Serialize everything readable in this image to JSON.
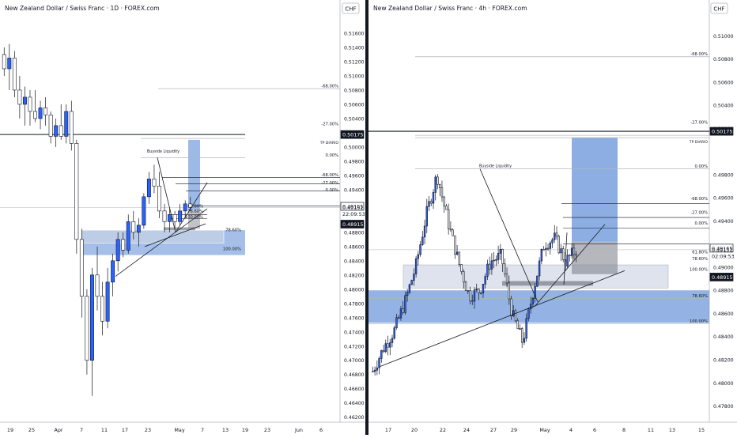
{
  "charts": {
    "left": {
      "title": "New Zealand Dollar / Swiss Franc · 1D · FOREX.com",
      "currency": "CHF",
      "price_ticks": [
        "0.51600",
        "0.51400",
        "0.51200",
        "0.51000",
        "0.50800",
        "0.50600",
        "0.50400",
        "0.50200",
        "0.50000",
        "0.49800",
        "0.49600",
        "0.49400",
        "0.48800",
        "0.48600",
        "0.48400",
        "0.48200",
        "0.48000",
        "0.47800",
        "0.47600",
        "0.47400",
        "0.47200",
        "0.47000",
        "0.46800",
        "0.46600",
        "0.46400",
        "0.46200"
      ],
      "date_ticks": [
        "19",
        "25",
        "Apr",
        "7",
        "11",
        "17",
        "23",
        "May",
        "7",
        "13",
        "19",
        "23",
        "Jun",
        "6"
      ],
      "fib_labels": [
        "-68.00%",
        "-27.00%",
        "0.00%",
        "-68.00%",
        "-27.00%",
        "0.00%",
        "61.80%",
        "78.60%",
        "100.00%",
        "78.60%",
        "100.00%"
      ],
      "annotations": {
        "buyside": "Buyside Liquidity",
        "tp": "TP DIARIO"
      },
      "price_tags": [
        {
          "text": "0.50175",
          "style": "dark"
        },
        {
          "text": "0.49165",
          "style": "outline"
        },
        {
          "text": "0.49151",
          "style": "plain"
        },
        {
          "text": "22:09:53",
          "style": "plain"
        },
        {
          "text": "0.48915",
          "style": "dark"
        }
      ]
    },
    "right": {
      "title": "New Zealand Dollar / Swiss Franc · 4h · FOREX.com",
      "currency": "CHF",
      "price_ticks": [
        "0.51000",
        "0.50800",
        "0.50600",
        "0.50400",
        "0.50200",
        "0.49800",
        "0.49600",
        "0.49400",
        "0.49000",
        "0.48800",
        "0.48600",
        "0.48400",
        "0.48200",
        "0.48000",
        "0.47800"
      ],
      "date_ticks": [
        "17",
        "20",
        "22",
        "24",
        "27",
        "29",
        "May",
        "4",
        "6",
        "8",
        "11",
        "13",
        "15"
      ],
      "fib_labels": [
        "-68.00%",
        "-27.00%",
        "0.00%",
        "-68.00%",
        "-27.00%",
        "0.00%",
        "61.80%",
        "78.60%",
        "100.00%",
        "78.60%",
        "100.00%"
      ],
      "annotations": {
        "buyside": "Buyside Liquidity",
        "tp": "TP DIARIO"
      },
      "price_tags": [
        {
          "text": "0.50175",
          "style": "dark"
        },
        {
          "text": "0.49165",
          "style": "outline"
        },
        {
          "text": "0.49151",
          "style": "plain"
        },
        {
          "text": "02:09:53",
          "style": "plain"
        },
        {
          "text": "0.48915",
          "style": "dark"
        }
      ]
    }
  },
  "colors": {
    "up": "#2962ff",
    "down": "#ffffff",
    "wick": "#131722",
    "zone": "#5b8bd6",
    "grid": "#e0e3eb"
  },
  "chart_data": [
    {
      "type": "candlestick",
      "title": "New Zealand Dollar / Swiss Franc · 1D · FOREX.com",
      "x_unit": "trading day index",
      "ylim": [
        0.4613,
        0.518
      ],
      "levels": {
        "tp": 0.50175,
        "last": 0.49151,
        "stop": 0.48915,
        "high_mark": 0.49165
      },
      "ohlc": [
        [
          0.513,
          0.514,
          0.51,
          0.511
        ],
        [
          0.511,
          0.5145,
          0.508,
          0.5125
        ],
        [
          0.5125,
          0.5135,
          0.507,
          0.508
        ],
        [
          0.508,
          0.51,
          0.504,
          0.506
        ],
        [
          0.506,
          0.5085,
          0.503,
          0.507
        ],
        [
          0.507,
          0.508,
          0.503,
          0.505
        ],
        [
          0.505,
          0.508,
          0.5035,
          0.504
        ],
        [
          0.504,
          0.5065,
          0.5025,
          0.5055
        ],
        [
          0.5055,
          0.507,
          0.503,
          0.5045
        ],
        [
          0.5045,
          0.505,
          0.5005,
          0.5015
        ],
        [
          0.5015,
          0.504,
          0.5,
          0.503
        ],
        [
          0.503,
          0.506,
          0.501,
          0.5015
        ],
        [
          0.5015,
          0.506,
          0.5005,
          0.505
        ],
        [
          0.505,
          0.5065,
          0.4995,
          0.5005
        ],
        [
          0.5005,
          0.501,
          0.485,
          0.487
        ],
        [
          0.487,
          0.4885,
          0.476,
          0.479
        ],
        [
          0.479,
          0.48,
          0.468,
          0.47
        ],
        [
          0.47,
          0.483,
          0.465,
          0.482
        ],
        [
          0.482,
          0.486,
          0.477,
          0.479
        ],
        [
          0.479,
          0.481,
          0.4735,
          0.4755
        ],
        [
          0.4755,
          0.483,
          0.4745,
          0.481
        ],
        [
          0.481,
          0.485,
          0.479,
          0.484
        ],
        [
          0.484,
          0.488,
          0.4825,
          0.487
        ],
        [
          0.487,
          0.488,
          0.4845,
          0.4855
        ],
        [
          0.4855,
          0.4905,
          0.485,
          0.4895
        ],
        [
          0.4895,
          0.491,
          0.487,
          0.488
        ],
        [
          0.488,
          0.49,
          0.486,
          0.489
        ],
        [
          0.489,
          0.4935,
          0.4885,
          0.493
        ],
        [
          0.493,
          0.4965,
          0.492,
          0.4955
        ],
        [
          0.4955,
          0.4975,
          0.4935,
          0.4945
        ],
        [
          0.4945,
          0.4965,
          0.49,
          0.491
        ],
        [
          0.491,
          0.492,
          0.488,
          0.4895
        ],
        [
          0.4895,
          0.4915,
          0.488,
          0.4905
        ],
        [
          0.4905,
          0.491,
          0.4885,
          0.4895
        ],
        [
          0.4895,
          0.492,
          0.489,
          0.491
        ],
        [
          0.491,
          0.4925,
          0.49,
          0.492
        ],
        [
          0.492,
          0.493,
          0.491,
          0.4915
        ]
      ],
      "fib_levels": [
        -0.68,
        -0.27,
        0,
        0.618,
        0.786,
        1.0
      ]
    },
    {
      "type": "candlestick",
      "title": "New Zealand Dollar / Swiss Franc · 4h · FOREX.com",
      "x_unit": "4h bar index",
      "ylim": [
        0.4766,
        0.5116
      ],
      "levels": {
        "tp": 0.50175,
        "last": 0.49151,
        "stop": 0.48915,
        "high_mark": 0.49165
      },
      "fib_levels": [
        -0.68,
        -0.27,
        0,
        0.618,
        0.786,
        1.0
      ]
    }
  ]
}
